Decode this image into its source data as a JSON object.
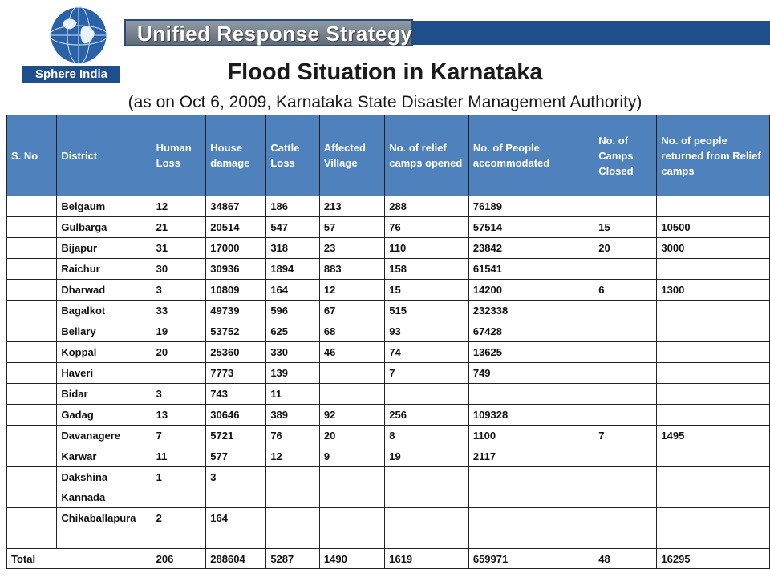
{
  "header": {
    "banner_text": "Unified Response Strategy",
    "logo_text": "Sphere India"
  },
  "title": "Flood Situation in Karnataka",
  "subtitle": "(as on Oct 6, 2009,  Karnataka State Disaster Management Authority)",
  "table": {
    "columns": [
      "S. No",
      "District",
      "Human Loss",
      "House damage",
      "Cattle Loss",
      "Affected Village",
      "No. of relief camps opened",
      "No. of People accommodated",
      "No. of Camps Closed",
      "No. of people returned from Relief camps"
    ],
    "rows": [
      [
        "",
        "Belgaum",
        "12",
        "34867",
        "186",
        "213",
        "288",
        "76189",
        "",
        ""
      ],
      [
        "",
        "Gulbarga",
        "21",
        "20514",
        "547",
        "57",
        "76",
        "57514",
        "15",
        "10500"
      ],
      [
        "",
        "Bijapur",
        "31",
        "17000",
        "318",
        "23",
        "110",
        "23842",
        "20",
        "3000"
      ],
      [
        "",
        "Raichur",
        "30",
        "30936",
        "1894",
        "883",
        "158",
        "61541",
        "",
        ""
      ],
      [
        "",
        "Dharwad",
        "3",
        "10809",
        "164",
        "12",
        "15",
        "14200",
        "6",
        "1300"
      ],
      [
        "",
        "Bagalkot",
        "33",
        "49739",
        "596",
        "67",
        "515",
        "232338",
        "",
        ""
      ],
      [
        "",
        "Bellary",
        "19",
        "53752",
        "625",
        "68",
        "93",
        "67428",
        "",
        ""
      ],
      [
        "",
        "Koppal",
        "20",
        "25360",
        "330",
        "46",
        "74",
        "13625",
        "",
        ""
      ],
      [
        "",
        "Haveri",
        "",
        "7773",
        "139",
        "",
        "7",
        "749",
        "",
        ""
      ],
      [
        "",
        "Bidar",
        "3",
        "743",
        "11",
        "",
        "",
        "",
        "",
        ""
      ],
      [
        "",
        "Gadag",
        "13",
        "30646",
        "389",
        "92",
        "256",
        "109328",
        "",
        ""
      ],
      [
        "",
        "Davanagere",
        "7",
        "5721",
        "76",
        "20",
        "8",
        "1100",
        "7",
        "1495"
      ],
      [
        "",
        "Karwar",
        "11",
        "577",
        "12",
        "9",
        "19",
        "2117",
        "",
        ""
      ],
      [
        "",
        "Dakshina Kannada",
        "1",
        "3",
        "",
        "",
        "",
        "",
        "",
        ""
      ],
      [
        "",
        "Chikaballapura",
        "2",
        "164",
        "",
        "",
        "",
        "",
        "",
        ""
      ]
    ],
    "total_row": [
      "Total",
      "206",
      "288604",
      "5287",
      "1490",
      "1619",
      "659971",
      "48",
      "16295"
    ]
  }
}
